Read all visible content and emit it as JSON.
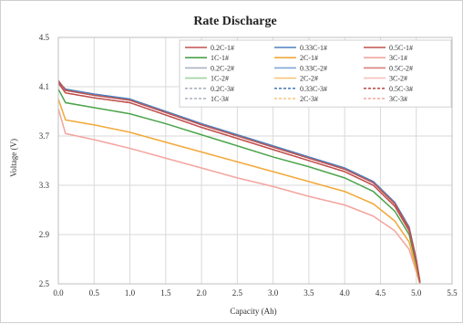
{
  "chart_data": {
    "type": "line",
    "title": "Rate Discharge",
    "xlabel": "Capacity (Ah)",
    "ylabel": "Voltage (V)",
    "xlim": [
      0.0,
      5.5
    ],
    "ylim": [
      2.5,
      4.5
    ],
    "x_ticks": [
      "0.0",
      "0.5",
      "1.0",
      "1.5",
      "2.0",
      "2.5",
      "3.0",
      "3.5",
      "4.0",
      "4.5",
      "5.0",
      "5.5"
    ],
    "y_ticks": [
      "2.5",
      "2.9",
      "3.3",
      "3.7",
      "4.1",
      "4.5"
    ],
    "grid": true,
    "legend_position": "top-right",
    "series": [
      {
        "name": "0.2C-1#",
        "color": "#c0504d",
        "dash": "solid",
        "x": [
          0.0,
          0.1,
          0.5,
          1.0,
          1.5,
          2.0,
          2.5,
          3.0,
          3.5,
          4.0,
          4.4,
          4.7,
          4.9,
          5.0,
          5.05
        ],
        "y": [
          4.15,
          4.07,
          4.03,
          3.99,
          3.89,
          3.79,
          3.7,
          3.61,
          3.52,
          3.43,
          3.32,
          3.15,
          2.95,
          2.7,
          2.52
        ]
      },
      {
        "name": "0.33C-1#",
        "color": "#4f81bd",
        "dash": "solid",
        "x": [
          0.0,
          0.1,
          0.5,
          1.0,
          1.5,
          2.0,
          2.5,
          3.0,
          3.5,
          4.0,
          4.4,
          4.7,
          4.9,
          5.0,
          5.05
        ],
        "y": [
          4.14,
          4.08,
          4.04,
          4.0,
          3.9,
          3.8,
          3.71,
          3.62,
          3.53,
          3.44,
          3.33,
          3.16,
          2.96,
          2.7,
          2.52
        ]
      },
      {
        "name": "0.5C-1#",
        "color": "#c0504d",
        "dash": "solid",
        "x": [
          0.0,
          0.1,
          0.5,
          1.0,
          1.5,
          2.0,
          2.5,
          3.0,
          3.5,
          4.0,
          4.4,
          4.7,
          4.9,
          5.0,
          5.05
        ],
        "y": [
          4.13,
          4.05,
          4.01,
          3.97,
          3.87,
          3.77,
          3.68,
          3.59,
          3.5,
          3.41,
          3.3,
          3.13,
          2.93,
          2.68,
          2.51
        ]
      },
      {
        "name": "1C-1#",
        "color": "#4aa44a",
        "dash": "solid",
        "x": [
          0.0,
          0.1,
          0.5,
          1.0,
          1.5,
          2.0,
          2.5,
          3.0,
          3.5,
          4.0,
          4.4,
          4.7,
          4.9,
          5.0,
          5.05
        ],
        "y": [
          4.08,
          3.97,
          3.93,
          3.88,
          3.8,
          3.71,
          3.62,
          3.53,
          3.45,
          3.36,
          3.25,
          3.09,
          2.9,
          2.66,
          2.51
        ]
      },
      {
        "name": "2C-1#",
        "color": "#f2a93b",
        "dash": "solid",
        "x": [
          0.0,
          0.1,
          0.5,
          1.0,
          1.5,
          2.0,
          2.5,
          3.0,
          3.5,
          4.0,
          4.4,
          4.7,
          4.9,
          5.0,
          5.05
        ],
        "y": [
          4.0,
          3.83,
          3.79,
          3.73,
          3.65,
          3.57,
          3.49,
          3.41,
          3.33,
          3.25,
          3.15,
          3.01,
          2.84,
          2.62,
          2.5
        ]
      },
      {
        "name": "3C-1#",
        "color": "#f4a6a0",
        "dash": "solid",
        "x": [
          0.0,
          0.1,
          0.5,
          1.0,
          1.5,
          2.0,
          2.5,
          3.0,
          3.5,
          4.0,
          4.4,
          4.7,
          4.9,
          5.0,
          5.05
        ],
        "y": [
          3.92,
          3.72,
          3.67,
          3.6,
          3.52,
          3.44,
          3.36,
          3.29,
          3.21,
          3.14,
          3.05,
          2.93,
          2.78,
          2.6,
          2.5
        ]
      },
      {
        "name": "0.2C-2#",
        "color": "#aab2bf",
        "dash": "solid",
        "x": [
          0.0,
          0.1,
          0.5,
          1.0,
          1.5,
          2.0,
          2.5,
          3.0,
          3.5,
          4.0,
          4.4,
          4.7,
          4.9,
          5.0,
          5.05
        ],
        "y": [
          4.15,
          4.07,
          4.03,
          3.99,
          3.89,
          3.79,
          3.7,
          3.61,
          3.52,
          3.43,
          3.32,
          3.15,
          2.95,
          2.7,
          2.52
        ]
      },
      {
        "name": "0.33C-2#",
        "color": "#7fa7d8",
        "dash": "solid",
        "x": [
          0.0,
          0.1,
          0.5,
          1.0,
          1.5,
          2.0,
          2.5,
          3.0,
          3.5,
          4.0,
          4.4,
          4.7,
          4.9,
          5.0,
          5.05
        ],
        "y": [
          4.14,
          4.08,
          4.04,
          4.0,
          3.9,
          3.8,
          3.71,
          3.62,
          3.53,
          3.44,
          3.33,
          3.16,
          2.96,
          2.7,
          2.52
        ]
      },
      {
        "name": "0.5C-2#",
        "color": "#d9807d",
        "dash": "solid",
        "x": [
          0.0,
          0.1,
          0.5,
          1.0,
          1.5,
          2.0,
          2.5,
          3.0,
          3.5,
          4.0,
          4.4,
          4.7,
          4.9,
          5.0,
          5.05
        ],
        "y": [
          4.13,
          4.05,
          4.01,
          3.97,
          3.87,
          3.77,
          3.68,
          3.59,
          3.5,
          3.41,
          3.3,
          3.13,
          2.93,
          2.68,
          2.51
        ]
      },
      {
        "name": "1C-2#",
        "color": "#9fd59f",
        "dash": "solid",
        "x": [
          0.0,
          0.1,
          0.5,
          1.0,
          1.5,
          2.0,
          2.5,
          3.0,
          3.5,
          4.0,
          4.4,
          4.7,
          4.9,
          5.0,
          5.05
        ],
        "y": [
          4.08,
          3.97,
          3.93,
          3.88,
          3.8,
          3.71,
          3.62,
          3.53,
          3.45,
          3.36,
          3.25,
          3.09,
          2.9,
          2.66,
          2.51
        ]
      },
      {
        "name": "2C-2#",
        "color": "#f7c67a",
        "dash": "solid",
        "x": [
          0.0,
          0.1,
          0.5,
          1.0,
          1.5,
          2.0,
          2.5,
          3.0,
          3.5,
          4.0,
          4.4,
          4.7,
          4.9,
          5.0,
          5.05
        ],
        "y": [
          4.0,
          3.83,
          3.79,
          3.73,
          3.65,
          3.57,
          3.49,
          3.41,
          3.33,
          3.25,
          3.15,
          3.01,
          2.84,
          2.62,
          2.5
        ]
      },
      {
        "name": "3C-2#",
        "color": "#f7c0bb",
        "dash": "solid",
        "x": [
          0.0,
          0.1,
          0.5,
          1.0,
          1.5,
          2.0,
          2.5,
          3.0,
          3.5,
          4.0,
          4.4,
          4.7,
          4.9,
          5.0,
          5.05
        ],
        "y": [
          3.92,
          3.72,
          3.67,
          3.6,
          3.52,
          3.44,
          3.36,
          3.29,
          3.21,
          3.14,
          3.05,
          2.93,
          2.78,
          2.6,
          2.5
        ]
      },
      {
        "name": "0.2C-3#",
        "color": "#aab2bf",
        "dash": "dashed",
        "x": [
          0.0,
          0.1,
          0.5,
          1.0,
          1.5,
          2.0,
          2.5,
          3.0,
          3.5,
          4.0,
          4.4,
          4.7,
          4.9,
          5.0,
          5.05
        ],
        "y": [
          4.15,
          4.07,
          4.03,
          3.99,
          3.89,
          3.79,
          3.7,
          3.61,
          3.52,
          3.43,
          3.32,
          3.15,
          2.95,
          2.7,
          2.52
        ]
      },
      {
        "name": "0.33C-3#",
        "color": "#4f81bd",
        "dash": "dashed",
        "x": [
          0.0,
          0.1,
          0.5,
          1.0,
          1.5,
          2.0,
          2.5,
          3.0,
          3.5,
          4.0,
          4.4,
          4.7,
          4.9,
          5.0,
          5.05
        ],
        "y": [
          4.14,
          4.08,
          4.04,
          4.0,
          3.9,
          3.8,
          3.71,
          3.62,
          3.53,
          3.44,
          3.33,
          3.16,
          2.96,
          2.7,
          2.52
        ]
      },
      {
        "name": "0.5C-3#",
        "color": "#c0504d",
        "dash": "dashed",
        "x": [
          0.0,
          0.1,
          0.5,
          1.0,
          1.5,
          2.0,
          2.5,
          3.0,
          3.5,
          4.0,
          4.4,
          4.7,
          4.9,
          5.0,
          5.05
        ],
        "y": [
          4.13,
          4.05,
          4.01,
          3.97,
          3.87,
          3.77,
          3.68,
          3.59,
          3.5,
          3.41,
          3.3,
          3.13,
          2.93,
          2.68,
          2.51
        ]
      },
      {
        "name": "1C-3#",
        "color": "#aab2bf",
        "dash": "dashed",
        "x": [
          0.0,
          0.1,
          0.5,
          1.0,
          1.5,
          2.0,
          2.5,
          3.0,
          3.5,
          4.0,
          4.4,
          4.7,
          4.9,
          5.0,
          5.05
        ],
        "y": [
          4.08,
          3.97,
          3.93,
          3.88,
          3.8,
          3.71,
          3.62,
          3.53,
          3.45,
          3.36,
          3.25,
          3.09,
          2.9,
          2.66,
          2.51
        ]
      },
      {
        "name": "2C-3#",
        "color": "#f7c67a",
        "dash": "dashed",
        "x": [
          0.0,
          0.1,
          0.5,
          1.0,
          1.5,
          2.0,
          2.5,
          3.0,
          3.5,
          4.0,
          4.4,
          4.7,
          4.9,
          5.0,
          5.05
        ],
        "y": [
          4.0,
          3.83,
          3.79,
          3.73,
          3.65,
          3.57,
          3.49,
          3.41,
          3.33,
          3.25,
          3.15,
          3.01,
          2.84,
          2.62,
          2.5
        ]
      },
      {
        "name": "3C-3#",
        "color": "#f4a6a0",
        "dash": "dashed",
        "x": [
          0.0,
          0.1,
          0.5,
          1.0,
          1.5,
          2.0,
          2.5,
          3.0,
          3.5,
          4.0,
          4.4,
          4.7,
          4.9,
          5.0,
          5.05
        ],
        "y": [
          3.92,
          3.72,
          3.67,
          3.6,
          3.52,
          3.44,
          3.36,
          3.29,
          3.21,
          3.14,
          3.05,
          2.93,
          2.78,
          2.6,
          2.5
        ]
      }
    ]
  }
}
